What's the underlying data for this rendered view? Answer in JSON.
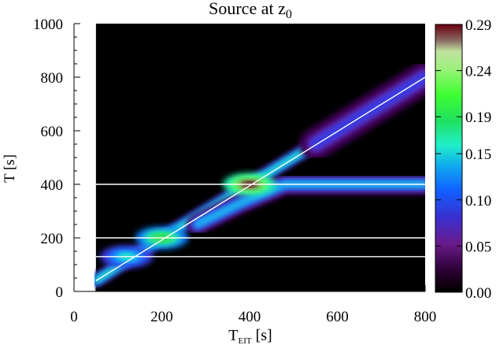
{
  "chart_data": {
    "type": "heatmap",
    "title_main": "Source at z",
    "title_sub": "0",
    "xlabel_main": "T",
    "xlabel_sub": "EIT",
    "xlabel_unit": " [s]",
    "ylabel": "T [s]",
    "xlim": [
      0,
      800
    ],
    "ylim": [
      0,
      1000
    ],
    "x_ticks": [
      0,
      200,
      400,
      600,
      800
    ],
    "y_ticks": [
      0,
      200,
      400,
      600,
      800,
      1000
    ],
    "colorbar": {
      "range": [
        0,
        0.29
      ],
      "ticks": [
        "0.29",
        "0.24",
        "0.19",
        "0.15",
        "0.10",
        "0.05",
        "0.00"
      ],
      "tick_values": [
        0.29,
        0.24,
        0.19,
        0.15,
        0.1,
        0.05,
        0.0
      ]
    },
    "data_region_x": [
      50,
      800
    ],
    "ridges": [
      {
        "points": [
          [
            50,
            40
          ],
          [
            200,
            200
          ],
          [
            400,
            400
          ],
          [
            550,
            550
          ]
        ],
        "width": 18,
        "peak": 0.2
      },
      {
        "points": [
          [
            550,
            550
          ],
          [
            800,
            800
          ]
        ],
        "width": 45,
        "peak": 0.12
      },
      {
        "points": [
          [
            280,
            250
          ],
          [
            380,
            330
          ],
          [
            480,
            400
          ],
          [
            600,
            400
          ],
          [
            800,
            400
          ]
        ],
        "width": 28,
        "peak": 0.16
      }
    ],
    "hotspots": [
      {
        "x": 400,
        "y": 400,
        "value": 0.29
      },
      {
        "x": 200,
        "y": 200,
        "value": 0.22
      },
      {
        "x": 120,
        "y": 130,
        "value": 0.18
      }
    ],
    "overlay_lines": [
      {
        "type": "diagonal",
        "from": [
          50,
          40
        ],
        "to": [
          800,
          800
        ]
      },
      {
        "type": "horizontal",
        "y": 400
      },
      {
        "type": "horizontal",
        "y": 200
      },
      {
        "type": "horizontal",
        "y": 130
      }
    ]
  }
}
